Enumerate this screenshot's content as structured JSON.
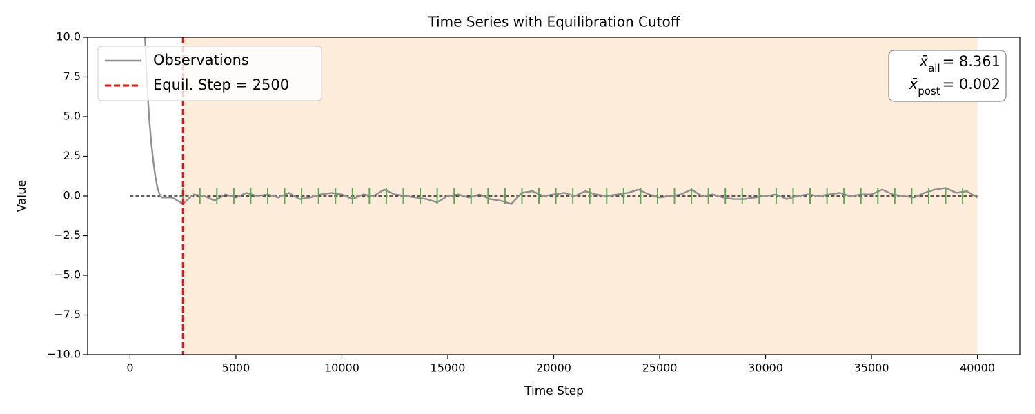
{
  "chart_data": {
    "type": "line",
    "title": "Time Series with Equilibration Cutoff",
    "x_label": "Time Step",
    "y_label": "Value",
    "xlim": [
      -2000,
      42000
    ],
    "ylim": [
      -10,
      10
    ],
    "xticks": [
      0,
      5000,
      10000,
      15000,
      20000,
      25000,
      30000,
      35000,
      40000
    ],
    "yticks": [
      {
        "value": -10,
        "label": "−10.0"
      },
      {
        "value": -7.5,
        "label": "−7.5"
      },
      {
        "value": -5,
        "label": "−5.0"
      },
      {
        "value": -2.5,
        "label": "−2.5"
      },
      {
        "value": 0,
        "label": "0.0"
      },
      {
        "value": 2.5,
        "label": "2.5"
      },
      {
        "value": 5,
        "label": "5.0"
      },
      {
        "value": 7.5,
        "label": "7.5"
      },
      {
        "value": 10,
        "label": "10.0"
      }
    ],
    "grid": false,
    "legend": "upper left",
    "series": [
      {
        "name": "Observations",
        "color": "#8f8f8f",
        "x": [
          600,
          700,
          800,
          900,
          1000,
          1100,
          1200,
          1300,
          1400,
          1500,
          2000,
          2500,
          3000,
          3500,
          4000,
          4500,
          5000,
          5500,
          6000,
          6500,
          7000,
          7500,
          8000,
          8500,
          9000,
          9500,
          10000,
          10500,
          11000,
          11500,
          12000,
          12500,
          13000,
          13500,
          14000,
          14500,
          15000,
          15500,
          16000,
          16500,
          17000,
          17500,
          18000,
          18500,
          19000,
          19500,
          20000,
          20500,
          21000,
          21500,
          22000,
          22500,
          23000,
          23500,
          24000,
          24500,
          25000,
          25500,
          26000,
          26500,
          27000,
          27500,
          28000,
          28500,
          29000,
          29500,
          30000,
          30500,
          31000,
          31500,
          32000,
          32500,
          33000,
          33500,
          34000,
          34500,
          35000,
          35500,
          36000,
          36500,
          37000,
          37500,
          38000,
          38500,
          39000,
          39500,
          40000
        ],
        "values": [
          13,
          10.3,
          7.2,
          5.0,
          3.4,
          2.2,
          1.2,
          0.5,
          0.1,
          -0.1,
          -0.1,
          -0.5,
          0.1,
          0.0,
          -0.3,
          0.1,
          -0.1,
          0.2,
          0.0,
          0.1,
          -0.1,
          0.2,
          -0.2,
          -0.1,
          0.1,
          0.2,
          0.1,
          -0.2,
          0.1,
          0.0,
          0.4,
          0.1,
          0.0,
          -0.1,
          -0.2,
          -0.4,
          0.0,
          0.1,
          -0.1,
          0.1,
          -0.2,
          -0.3,
          -0.5,
          0.2,
          0.3,
          0.0,
          0.1,
          0.2,
          0.0,
          0.3,
          0.1,
          0.0,
          0.1,
          0.2,
          0.4,
          0.1,
          -0.1,
          0.0,
          0.1,
          0.4,
          0.0,
          0.1,
          -0.1,
          -0.2,
          -0.2,
          -0.1,
          0.0,
          0.1,
          -0.2,
          0.0,
          0.1,
          0.0,
          0.1,
          0.2,
          0.0,
          0.1,
          0.1,
          0.4,
          0.1,
          0.0,
          -0.1,
          0.2,
          0.4,
          0.5,
          0.2,
          0.3,
          -0.1
        ]
      }
    ],
    "equil_step": 2500,
    "equil_label": "Equil. Step = 2500",
    "equil_color": "#e8130f",
    "shade": {
      "x": [
        2500,
        40000
      ],
      "color": "#fdd9b5"
    },
    "reference": {
      "y": 0,
      "x": [
        0,
        40000
      ],
      "color": "#000000"
    },
    "markers": {
      "color": "#5aaa55",
      "ymin": -0.5,
      "ymax": 0.5,
      "x": [
        2500,
        3300,
        4100,
        4900,
        5700,
        6500,
        7300,
        8100,
        8900,
        9700,
        10500,
        11300,
        12100,
        12900,
        13700,
        14500,
        15300,
        16100,
        16900,
        17700,
        18500,
        19300,
        20100,
        20900,
        21700,
        22500,
        23300,
        24100,
        24900,
        25700,
        26500,
        27300,
        28100,
        28900,
        29700,
        30500,
        31300,
        32100,
        32900,
        33700,
        34500,
        35300,
        36100,
        36900,
        37700,
        38500,
        39300
      ]
    },
    "stats": [
      {
        "symbol": "x̄",
        "subscript": "all",
        "text": "= 8.361"
      },
      {
        "symbol": "x̄",
        "subscript": "post",
        "text": "= 0.002"
      }
    ]
  }
}
